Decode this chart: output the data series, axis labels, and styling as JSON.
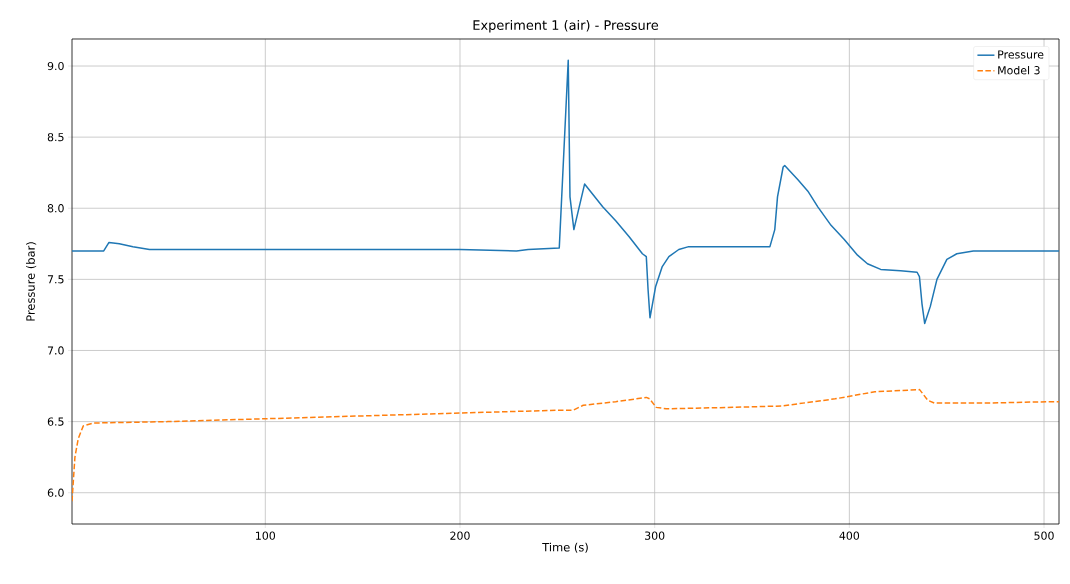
{
  "chart_data": {
    "type": "line",
    "title": "Experiment 1 (air) - Pressure",
    "xlabel": "Time (s)",
    "ylabel": "Pressure (bar)",
    "xlim": [
      0.7,
      507.7
    ],
    "ylim": [
      5.78,
      9.19
    ],
    "xticks": [
      100,
      200,
      300,
      400,
      500
    ],
    "yticks": [
      {
        "value": 6,
        "label": "6.0"
      },
      {
        "value": 6.5,
        "label": "6.5"
      },
      {
        "value": 7,
        "label": "7.0"
      },
      {
        "value": 7.5,
        "label": "7.5"
      },
      {
        "value": 8,
        "label": "8.0"
      },
      {
        "value": 8.5,
        "label": "8.5"
      },
      {
        "value": 9,
        "label": "9.0"
      }
    ],
    "grid": true,
    "legend": "top right",
    "series": [
      {
        "name": "Pressure",
        "color": "#1f77b4",
        "line_style": "solid",
        "x": [
          0.7,
          10,
          17,
          19.7,
          25,
          32,
          40.5,
          60,
          100,
          150,
          200,
          229,
          235,
          251,
          255.6,
          256.5,
          258.5,
          264,
          273.3,
          280.1,
          286.9,
          293.7,
          295.7,
          296.6,
          297.6,
          300.5,
          303.9,
          307.3,
          312.4,
          317.5,
          340,
          359.2,
          361.7,
          363.1,
          366,
          366.8,
          373.6,
          378.7,
          383.8,
          390.6,
          397.4,
          404.2,
          409.3,
          416.1,
          426.3,
          434.8,
          436,
          437.3,
          438.7,
          441.6,
          445,
          450.1,
          455.2,
          463.7,
          480,
          507.7
        ],
        "values": [
          7.7,
          7.7,
          7.7,
          7.76,
          7.75,
          7.73,
          7.71,
          7.71,
          7.71,
          7.71,
          7.71,
          7.7,
          7.71,
          7.72,
          9.04,
          8.08,
          7.85,
          8.17,
          8.01,
          7.91,
          7.8,
          7.68,
          7.66,
          7.43,
          7.23,
          7.45,
          7.59,
          7.66,
          7.71,
          7.73,
          7.73,
          7.73,
          7.85,
          8.08,
          8.29,
          8.3,
          8.2,
          8.12,
          8.01,
          7.88,
          7.78,
          7.67,
          7.61,
          7.57,
          7.56,
          7.55,
          7.52,
          7.33,
          7.19,
          7.31,
          7.5,
          7.64,
          7.68,
          7.7,
          7.7,
          7.7
        ]
      },
      {
        "name": "Model 3",
        "color": "#ff7f0e",
        "line_style": "dashed",
        "x": [
          0.7,
          2.2,
          3.9,
          6.5,
          11.6,
          50,
          100,
          150,
          200,
          250,
          258.2,
          263.3,
          280,
          295.7,
          297.4,
          300.8,
          305.9,
          340,
          365.4,
          392.7,
          413.1,
          436.1,
          440.3,
          443.7,
          470,
          503.3,
          507.7
        ],
        "values": [
          5.94,
          6.25,
          6.38,
          6.47,
          6.49,
          6.5,
          6.52,
          6.54,
          6.56,
          6.58,
          6.58,
          6.615,
          6.64,
          6.67,
          6.66,
          6.6,
          6.59,
          6.6,
          6.61,
          6.66,
          6.71,
          6.725,
          6.65,
          6.63,
          6.63,
          6.64,
          6.64
        ]
      }
    ]
  }
}
